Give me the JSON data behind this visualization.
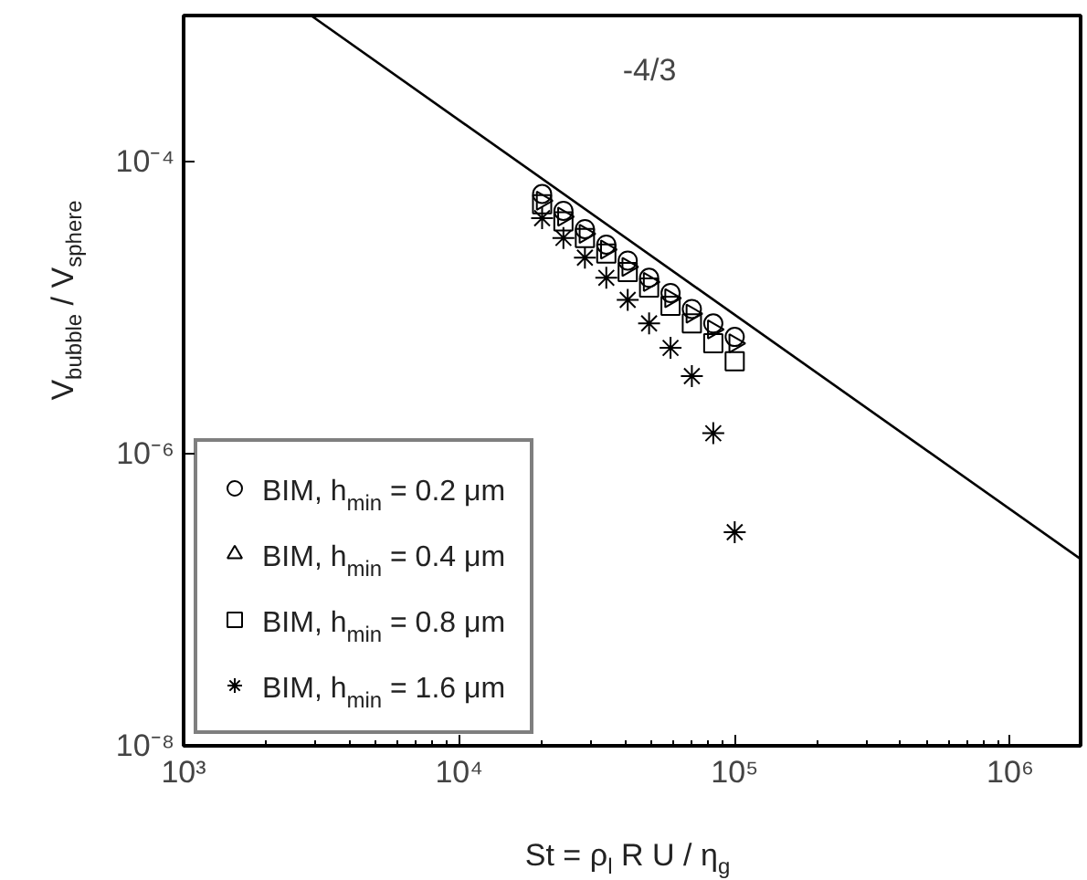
{
  "chart_data": {
    "type": "scatter",
    "xlabel": "St = ρ$_{l}$ R U / η$_{g}$",
    "ylabel": "V$_{bubble}$ / V$_{sphere}$",
    "log": "xy",
    "xlim": [
      1000,
      1800000
    ],
    "ylim": [
      1e-08,
      0.001
    ],
    "xticks": [
      {
        "value": 1000,
        "label": "10³"
      },
      {
        "value": 10000,
        "label": "10⁴"
      },
      {
        "value": 100000,
        "label": "10⁵"
      },
      {
        "value": 1000000,
        "label": "10⁶"
      }
    ],
    "yticks": [
      {
        "value": 1e-08,
        "label": "10⁻⁸"
      },
      {
        "value": 1e-06,
        "label": "10⁻⁶"
      },
      {
        "value": 0.0001,
        "label": "10⁻⁴"
      }
    ],
    "x": [
      20000,
      23900,
      28600,
      34200,
      40900,
      48900,
      58500,
      69900,
      83600,
      100000
    ],
    "series": [
      {
        "name": "BIM, h$_{min}$ = 0.2 μm",
        "color": "#000000",
        "marker": "circle",
        "values": [
          6e-05,
          4.6e-05,
          3.45e-05,
          2.7e-05,
          2.1e-05,
          1.6e-05,
          1.26e-05,
          9.8e-06,
          7.8e-06,
          6.3e-06
        ]
      },
      {
        "name": "BIM, h$_{min}$ = 0.4 μm",
        "color": "#000000",
        "marker": "triangle",
        "values": [
          5.4e-05,
          4.2e-05,
          3.2e-05,
          2.5e-05,
          1.9e-05,
          1.5e-05,
          1.16e-05,
          9.1e-06,
          7.1e-06,
          5.7e-06
        ]
      },
      {
        "name": "BIM, h$_{min}$ = 0.8 μm",
        "color": "#000000",
        "marker": "square",
        "values": [
          5.1e-05,
          3.9e-05,
          3e-05,
          2.35e-05,
          1.75e-05,
          1.37e-05,
          1.03e-05,
          7.8e-06,
          5.7e-06,
          4.3e-06
        ]
      },
      {
        "name": "BIM, h$_{min}$ = 1.6 μm",
        "color": "#000000",
        "marker": "cross",
        "values": [
          4.1e-05,
          3e-05,
          2.2e-05,
          1.6e-05,
          1.13e-05,
          7.8e-06,
          5.3e-06,
          3.4e-06,
          1.38e-06,
          2.9e-07
        ]
      },
      {
        "type": "line",
        "color": "#000000",
        "x": [
          2900,
          1800000
        ],
        "values": [
          0.001,
          1.9e-07
        ]
      }
    ],
    "annotations": [
      "-4/3"
    ],
    "legend": "bottom left"
  }
}
